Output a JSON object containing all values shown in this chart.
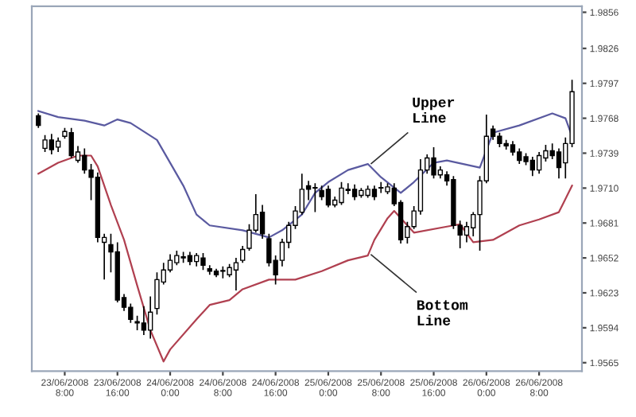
{
  "chart_data": {
    "type": "candlestick",
    "x": [
      "2008-06-23T04:00",
      "2008-06-23T05:00",
      "2008-06-23T06:00",
      "2008-06-23T07:00",
      "2008-06-23T08:00",
      "2008-06-23T09:00",
      "2008-06-23T10:00",
      "2008-06-23T11:00",
      "2008-06-23T12:00",
      "2008-06-23T13:00",
      "2008-06-23T14:00",
      "2008-06-23T15:00",
      "2008-06-23T16:00",
      "2008-06-23T17:00",
      "2008-06-23T18:00",
      "2008-06-23T19:00",
      "2008-06-23T20:00",
      "2008-06-23T21:00",
      "2008-06-23T22:00",
      "2008-06-23T23:00",
      "2008-06-24T00:00",
      "2008-06-24T01:00",
      "2008-06-24T02:00",
      "2008-06-24T03:00",
      "2008-06-24T04:00",
      "2008-06-24T05:00",
      "2008-06-24T06:00",
      "2008-06-24T07:00",
      "2008-06-24T08:00",
      "2008-06-24T09:00",
      "2008-06-24T10:00",
      "2008-06-24T11:00",
      "2008-06-24T12:00",
      "2008-06-24T13:00",
      "2008-06-24T14:00",
      "2008-06-24T15:00",
      "2008-06-24T16:00",
      "2008-06-24T17:00",
      "2008-06-24T18:00",
      "2008-06-24T19:00",
      "2008-06-24T20:00",
      "2008-06-24T21:00",
      "2008-06-24T22:00",
      "2008-06-24T23:00",
      "2008-06-25T00:00",
      "2008-06-25T01:00",
      "2008-06-25T02:00",
      "2008-06-25T03:00",
      "2008-06-25T04:00",
      "2008-06-25T05:00",
      "2008-06-25T06:00",
      "2008-06-25T07:00",
      "2008-06-25T08:00",
      "2008-06-25T09:00",
      "2008-06-25T10:00",
      "2008-06-25T11:00",
      "2008-06-25T12:00",
      "2008-06-25T13:00",
      "2008-06-25T14:00",
      "2008-06-25T15:00",
      "2008-06-25T16:00",
      "2008-06-25T17:00",
      "2008-06-25T18:00",
      "2008-06-25T19:00",
      "2008-06-25T20:00",
      "2008-06-25T21:00",
      "2008-06-25T22:00",
      "2008-06-25T23:00",
      "2008-06-26T00:00",
      "2008-06-26T01:00",
      "2008-06-26T02:00",
      "2008-06-26T03:00",
      "2008-06-26T04:00",
      "2008-06-26T05:00",
      "2008-06-26T06:00",
      "2008-06-26T07:00",
      "2008-06-26T08:00",
      "2008-06-26T09:00",
      "2008-06-26T10:00",
      "2008-06-26T11:00",
      "2008-06-26T12:00",
      "2008-06-26T13:00"
    ],
    "ohlc": [
      [
        1.977,
        1.9772,
        1.976,
        1.9762
      ],
      [
        1.9743,
        1.9754,
        1.974,
        1.975
      ],
      [
        1.975,
        1.9755,
        1.9738,
        1.9742
      ],
      [
        1.9744,
        1.9752,
        1.974,
        1.9749
      ],
      [
        1.9753,
        1.976,
        1.9751,
        1.9757
      ],
      [
        1.9756,
        1.976,
        1.9735,
        1.9737
      ],
      [
        1.9733,
        1.9745,
        1.9731,
        1.974
      ],
      [
        1.9737,
        1.9743,
        1.9722,
        1.9725
      ],
      [
        1.9725,
        1.973,
        1.97,
        1.9719
      ],
      [
        1.9719,
        1.9723,
        1.9665,
        1.9669
      ],
      [
        1.9665,
        1.9672,
        1.9634,
        1.9669
      ],
      [
        1.9663,
        1.9672,
        1.964,
        1.9657
      ],
      [
        1.9657,
        1.9665,
        1.9615,
        1.9617
      ],
      [
        1.9619,
        1.9622,
        1.9608,
        1.9611
      ],
      [
        1.9611,
        1.9614,
        1.9598,
        1.9601
      ],
      [
        1.9599,
        1.9604,
        1.9592,
        1.9598
      ],
      [
        1.9598,
        1.9612,
        1.9588,
        1.9592
      ],
      [
        1.9592,
        1.962,
        1.9585,
        1.9607
      ],
      [
        1.961,
        1.964,
        1.9605,
        1.9634
      ],
      [
        1.9632,
        1.9648,
        1.963,
        1.9642
      ],
      [
        1.9642,
        1.9655,
        1.964,
        1.965
      ],
      [
        1.9648,
        1.9658,
        1.9646,
        1.9654
      ],
      [
        1.9653,
        1.9657,
        1.9648,
        1.9652
      ],
      [
        1.9654,
        1.9657,
        1.9646,
        1.9649
      ],
      [
        1.9649,
        1.9656,
        1.9645,
        1.9654
      ],
      [
        1.9652,
        1.9656,
        1.9642,
        1.9646
      ],
      [
        1.9643,
        1.9646,
        1.9638,
        1.9641
      ],
      [
        1.9641,
        1.9643,
        1.9636,
        1.9638
      ],
      [
        1.9641,
        1.9645,
        1.9635,
        1.9641
      ],
      [
        1.9638,
        1.9647,
        1.9636,
        1.9644
      ],
      [
        1.9642,
        1.9652,
        1.9625,
        1.9648
      ],
      [
        1.965,
        1.9662,
        1.9648,
        1.9659
      ],
      [
        1.966,
        1.968,
        1.9658,
        1.9675
      ],
      [
        1.9675,
        1.9705,
        1.9673,
        1.9688
      ],
      [
        1.969,
        1.9696,
        1.9668,
        1.9672
      ],
      [
        1.9668,
        1.9672,
        1.9645,
        1.9648
      ],
      [
        1.965,
        1.9654,
        1.963,
        1.9638
      ],
      [
        1.965,
        1.9668,
        1.9645,
        1.9665
      ],
      [
        1.9665,
        1.9682,
        1.966,
        1.9679
      ],
      [
        1.9679,
        1.9695,
        1.9676,
        1.9691
      ],
      [
        1.969,
        1.9722,
        1.9688,
        1.9709
      ],
      [
        1.9712,
        1.9716,
        1.97,
        1.9709
      ],
      [
        1.971,
        1.9714,
        1.969,
        1.971
      ],
      [
        1.9708,
        1.9712,
        1.97,
        1.9703
      ],
      [
        1.9709,
        1.9712,
        1.9694,
        1.9696
      ],
      [
        1.9696,
        1.9703,
        1.9694,
        1.97
      ],
      [
        1.9698,
        1.9715,
        1.9696,
        1.971
      ],
      [
        1.9709,
        1.9714,
        1.9705,
        1.9708
      ],
      [
        1.9709,
        1.9713,
        1.97,
        1.9703
      ],
      [
        1.9704,
        1.971,
        1.9702,
        1.9708
      ],
      [
        1.9704,
        1.9712,
        1.9702,
        1.9709
      ],
      [
        1.9709,
        1.9712,
        1.97,
        1.9703
      ],
      [
        1.971,
        1.9715,
        1.9706,
        1.971
      ],
      [
        1.9707,
        1.9714,
        1.9705,
        1.9711
      ],
      [
        1.971,
        1.9714,
        1.9695,
        1.9697
      ],
      [
        1.9698,
        1.97,
        1.9664,
        1.9667
      ],
      [
        1.9669,
        1.9682,
        1.9664,
        1.9678
      ],
      [
        1.9678,
        1.9695,
        1.9676,
        1.9691
      ],
      [
        1.9691,
        1.9734,
        1.9688,
        1.9725
      ],
      [
        1.9725,
        1.9738,
        1.9722,
        1.9735
      ],
      [
        1.9735,
        1.9744,
        1.9718,
        1.9721
      ],
      [
        1.9721,
        1.9728,
        1.9718,
        1.9725
      ],
      [
        1.9721,
        1.9724,
        1.9712,
        1.9716
      ],
      [
        1.9717,
        1.972,
        1.9676,
        1.9679
      ],
      [
        1.9679,
        1.9683,
        1.966,
        1.9671
      ],
      [
        1.9671,
        1.9682,
        1.9665,
        1.9678
      ],
      [
        1.9677,
        1.969,
        1.967,
        1.9688
      ],
      [
        1.9688,
        1.972,
        1.9658,
        1.9716
      ],
      [
        1.9716,
        1.9771,
        1.9714,
        1.9753
      ],
      [
        1.9759,
        1.9762,
        1.975,
        1.9753
      ],
      [
        1.9753,
        1.9756,
        1.9744,
        1.9747
      ],
      [
        1.9747,
        1.975,
        1.9742,
        1.9745
      ],
      [
        1.9746,
        1.9749,
        1.9737,
        1.974
      ],
      [
        1.974,
        1.9743,
        1.973,
        1.9733
      ],
      [
        1.9736,
        1.9739,
        1.9729,
        1.9732
      ],
      [
        1.9733,
        1.9736,
        1.972,
        1.9725
      ],
      [
        1.9725,
        1.974,
        1.9722,
        1.9737
      ],
      [
        1.9735,
        1.9746,
        1.9732,
        1.9741
      ],
      [
        1.9741,
        1.9747,
        1.9734,
        1.9737
      ],
      [
        1.974,
        1.9743,
        1.9718,
        1.9727
      ],
      [
        1.9731,
        1.9752,
        1.9718,
        1.9747
      ],
      [
        1.9747,
        1.98,
        1.9744,
        1.979
      ]
    ],
    "series": [
      {
        "type": "line",
        "color": "#5a5aa0",
        "x": [
          "2008-06-23T04:00",
          "2008-06-23T07:00",
          "2008-06-23T11:00",
          "2008-06-23T14:00",
          "2008-06-23T16:00",
          "2008-06-23T18:00",
          "2008-06-23T22:00",
          "2008-06-24T02:00",
          "2008-06-24T04:00",
          "2008-06-24T06:00",
          "2008-06-24T11:00",
          "2008-06-24T15:00",
          "2008-06-24T17:00",
          "2008-06-24T20:00",
          "2008-06-24T22:00",
          "2008-06-25T00:00",
          "2008-06-25T03:00",
          "2008-06-25T06:00",
          "2008-06-25T08:00",
          "2008-06-25T11:00",
          "2008-06-25T13:00",
          "2008-06-25T16:00",
          "2008-06-25T18:00",
          "2008-06-25T23:00",
          "2008-06-26T01:00",
          "2008-06-26T05:00",
          "2008-06-26T10:00",
          "2008-06-26T12:00",
          "2008-06-26T13:00"
        ],
        "values": [
          1.9774,
          1.9769,
          1.9766,
          1.9762,
          1.9767,
          1.9764,
          1.975,
          1.9712,
          1.9688,
          1.9679,
          1.9675,
          1.9669,
          1.9675,
          1.9688,
          1.9706,
          1.9715,
          1.9725,
          1.973,
          1.9719,
          1.9706,
          1.9715,
          1.9731,
          1.9733,
          1.9727,
          1.9756,
          1.9762,
          1.9772,
          1.9768,
          1.9753
        ]
      },
      {
        "type": "line",
        "color": "#b04050",
        "x": [
          "2008-06-23T04:00",
          "2008-06-23T07:00",
          "2008-06-23T10:00",
          "2008-06-23T12:00",
          "2008-06-23T13:00",
          "2008-06-23T15:00",
          "2008-06-23T17:00",
          "2008-06-23T19:00",
          "2008-06-23T21:00",
          "2008-06-23T23:00",
          "2008-06-24T00:00",
          "2008-06-24T04:00",
          "2008-06-24T06:00",
          "2008-06-24T09:00",
          "2008-06-24T11:00",
          "2008-06-24T15:00",
          "2008-06-24T19:00",
          "2008-06-24T23:00",
          "2008-06-25T03:00",
          "2008-06-25T06:00",
          "2008-06-25T07:00",
          "2008-06-25T09:00",
          "2008-06-25T10:00",
          "2008-06-25T13:00",
          "2008-06-25T18:00",
          "2008-06-25T20:00",
          "2008-06-25T22:00",
          "2008-06-26T01:00",
          "2008-06-26T05:00",
          "2008-06-26T08:00",
          "2008-06-26T11:00",
          "2008-06-26T13:00"
        ],
        "values": [
          1.9722,
          1.9731,
          1.9737,
          1.9737,
          1.9728,
          1.9696,
          1.9667,
          1.9629,
          1.9592,
          1.9566,
          1.9576,
          1.9601,
          1.9613,
          1.9617,
          1.9626,
          1.9634,
          1.9634,
          1.9641,
          1.965,
          1.9654,
          1.9667,
          1.9685,
          1.9691,
          1.9673,
          1.9678,
          1.968,
          1.9665,
          1.9667,
          1.9679,
          1.9684,
          1.969,
          1.9712
        ]
      }
    ],
    "annotations": [
      {
        "text": "Upper\nLine",
        "x": "2008-06-25T06:00",
        "y": 1.9728
      },
      {
        "text": "Bottom\nLine",
        "x": "2008-06-25T06:00",
        "y": 1.9657
      }
    ],
    "xlim": [
      "2008-06-23T03:00",
      "2008-06-26T14:30"
    ],
    "xticks": [
      {
        "value": "2008-06-23T08:00",
        "label": "23/06/2008\n8:00"
      },
      {
        "value": "2008-06-23T16:00",
        "label": "23/06/2008\n16:00"
      },
      {
        "value": "2008-06-24T00:00",
        "label": "24/06/2008\n0:00"
      },
      {
        "value": "2008-06-24T08:00",
        "label": "24/06/2008\n8:00"
      },
      {
        "value": "2008-06-24T16:00",
        "label": "24/06/2008\n16:00"
      },
      {
        "value": "2008-06-25T00:00",
        "label": "25/06/2008\n0:00"
      },
      {
        "value": "2008-06-25T08:00",
        "label": "25/06/2008\n8:00"
      },
      {
        "value": "2008-06-25T16:00",
        "label": "25/06/2008\n16:00"
      },
      {
        "value": "2008-06-26T00:00",
        "label": "26/06/2008\n0:00"
      },
      {
        "value": "2008-06-26T08:00",
        "label": "26/06/2008\n8:00"
      }
    ],
    "ylim": [
      1.9558,
      1.9861
    ],
    "yticks": [
      1.9565,
      1.9594,
      1.9623,
      1.9652,
      1.9681,
      {
        "value": 1.971,
        "label": "1.9710"
      },
      1.9739,
      1.9768,
      1.9797,
      1.9826,
      1.9856
    ],
    "grid": false
  }
}
